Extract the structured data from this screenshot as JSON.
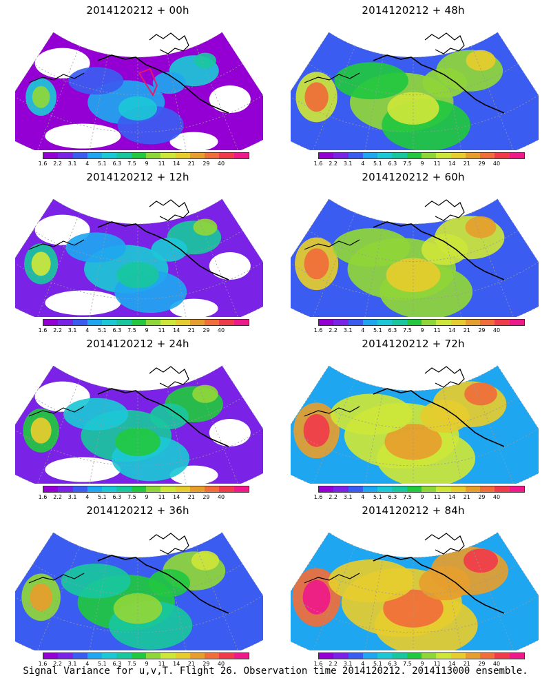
{
  "footer": "Signal Variance for u,v,T. Flight 26. Observation time 2014120212. 2014113000 ensemble.",
  "colorbar": {
    "labels": [
      "1.6",
      "2.2",
      "3.1",
      "4",
      "5.1",
      "6.3",
      "7.5",
      "9",
      "11",
      "14",
      "21",
      "29",
      "40"
    ],
    "colors": [
      "#9400d3",
      "#7a22e6",
      "#3b5cf0",
      "#1fa6f0",
      "#1cc7d6",
      "#19c79e",
      "#22c840",
      "#8fd639",
      "#cde639",
      "#e6cc2e",
      "#e69e2e",
      "#f06e3a",
      "#f03c4a",
      "#ee1a8a"
    ]
  },
  "panels": [
    {
      "title": "2014120212 + 00h",
      "level": 0.0,
      "target": true
    },
    {
      "title": "2014120212 + 48h",
      "level": 0.55,
      "target": false
    },
    {
      "title": "2014120212 + 12h",
      "level": 0.15,
      "target": false
    },
    {
      "title": "2014120212 + 60h",
      "level": 0.65,
      "target": false
    },
    {
      "title": "2014120212 + 24h",
      "level": 0.28,
      "target": false
    },
    {
      "title": "2014120212 + 72h",
      "level": 0.78,
      "target": false
    },
    {
      "title": "2014120212 + 36h",
      "level": 0.42,
      "target": false
    },
    {
      "title": "2014120212 + 84h",
      "level": 0.9,
      "target": false
    }
  ]
}
